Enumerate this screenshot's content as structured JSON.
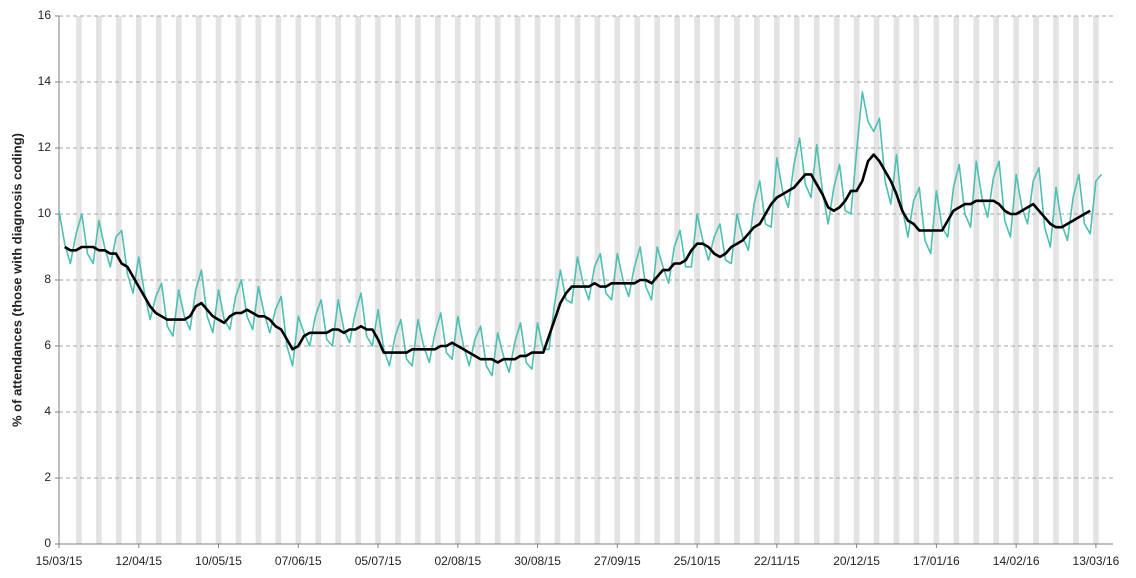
{
  "chart_data": {
    "type": "line",
    "y_label": "% of attendances (those with diagnosis coding)",
    "x": [
      "15/03/15",
      "17/03/15",
      "19/03/15",
      "21/03/15",
      "23/03/15",
      "25/03/15",
      "27/03/15",
      "29/03/15",
      "31/03/15",
      "02/04/15",
      "04/04/15",
      "06/04/15",
      "08/04/15",
      "10/04/15",
      "12/04/15",
      "14/04/15",
      "16/04/15",
      "18/04/15",
      "20/04/15",
      "22/04/15",
      "24/04/15",
      "26/04/15",
      "28/04/15",
      "30/04/15",
      "02/05/15",
      "04/05/15",
      "06/05/15",
      "08/05/15",
      "10/05/15",
      "12/05/15",
      "14/05/15",
      "16/05/15",
      "18/05/15",
      "20/05/15",
      "22/05/15",
      "24/05/15",
      "26/05/15",
      "28/05/15",
      "30/05/15",
      "01/06/15",
      "03/06/15",
      "05/06/15",
      "07/06/15",
      "09/06/15",
      "11/06/15",
      "13/06/15",
      "15/06/15",
      "17/06/15",
      "19/06/15",
      "21/06/15",
      "23/06/15",
      "25/06/15",
      "27/06/15",
      "29/06/15",
      "01/07/15",
      "03/07/15",
      "05/07/15",
      "07/07/15",
      "09/07/15",
      "11/07/15",
      "13/07/15",
      "15/07/15",
      "17/07/15",
      "19/07/15",
      "21/07/15",
      "23/07/15",
      "25/07/15",
      "27/07/15",
      "29/07/15",
      "31/07/15",
      "02/08/15",
      "04/08/15",
      "06/08/15",
      "08/08/15",
      "10/08/15",
      "12/08/15",
      "14/08/15",
      "16/08/15",
      "18/08/15",
      "20/08/15",
      "22/08/15",
      "24/08/15",
      "26/08/15",
      "28/08/15",
      "30/08/15",
      "01/09/15",
      "03/09/15",
      "05/09/15",
      "07/09/15",
      "09/09/15",
      "11/09/15",
      "13/09/15",
      "15/09/15",
      "17/09/15",
      "19/09/15",
      "21/09/15",
      "23/09/15",
      "25/09/15",
      "27/09/15",
      "29/09/15",
      "01/10/15",
      "03/10/15",
      "05/10/15",
      "07/10/15",
      "09/10/15",
      "11/10/15",
      "13/10/15",
      "15/10/15",
      "17/10/15",
      "19/10/15",
      "21/10/15",
      "23/10/15",
      "25/10/15",
      "27/10/15",
      "29/10/15",
      "31/10/15",
      "02/11/15",
      "04/11/15",
      "06/11/15",
      "08/11/15",
      "10/11/15",
      "12/11/15",
      "14/11/15",
      "16/11/15",
      "18/11/15",
      "20/11/15",
      "22/11/15",
      "24/11/15",
      "26/11/15",
      "28/11/15",
      "30/11/15",
      "02/12/15",
      "04/12/15",
      "06/12/15",
      "08/12/15",
      "10/12/15",
      "12/12/15",
      "14/12/15",
      "16/12/15",
      "18/12/15",
      "20/12/15",
      "22/12/15",
      "24/12/15",
      "26/12/15",
      "28/12/15",
      "30/12/15",
      "01/01/16",
      "03/01/16",
      "05/01/16",
      "07/01/16",
      "09/01/16",
      "11/01/16",
      "13/01/16",
      "15/01/16",
      "17/01/16",
      "19/01/16",
      "21/01/16",
      "23/01/16",
      "25/01/16",
      "27/01/16",
      "29/01/16",
      "31/01/16",
      "02/02/16",
      "04/02/16",
      "06/02/16",
      "08/02/16",
      "10/02/16",
      "12/02/16",
      "14/02/16",
      "16/02/16",
      "18/02/16",
      "20/02/16",
      "22/02/16",
      "24/02/16",
      "26/02/16",
      "28/02/16",
      "01/03/16",
      "03/03/16",
      "05/03/16",
      "07/03/16",
      "09/03/16",
      "11/03/16",
      "13/03/16",
      "15/03/16"
    ],
    "series": [
      {
        "color": "#4dbfb3",
        "width": 1.6,
        "values": [
          10.1,
          9.1,
          8.5,
          9.4,
          10.0,
          8.8,
          8.5,
          9.8,
          9.0,
          8.4,
          9.3,
          9.5,
          8.2,
          7.6,
          8.7,
          7.6,
          6.8,
          7.5,
          7.9,
          6.6,
          6.3,
          7.7,
          6.9,
          6.5,
          7.7,
          8.3,
          6.9,
          6.4,
          7.7,
          6.8,
          6.5,
          7.5,
          8.0,
          6.9,
          6.5,
          7.8,
          7.0,
          6.4,
          7.1,
          7.5,
          6.0,
          5.4,
          6.9,
          6.4,
          6.0,
          6.9,
          7.4,
          6.2,
          6.0,
          7.4,
          6.5,
          6.1,
          7.0,
          7.6,
          6.3,
          6.0,
          7.1,
          5.9,
          5.4,
          6.3,
          6.8,
          5.6,
          5.4,
          6.8,
          6.0,
          5.5,
          6.4,
          7.0,
          5.8,
          5.6,
          6.9,
          6.0,
          5.4,
          6.2,
          6.6,
          5.4,
          5.1,
          6.4,
          5.7,
          5.2,
          6.1,
          6.7,
          5.5,
          5.3,
          6.7,
          5.9,
          5.9,
          7.3,
          8.3,
          7.4,
          7.3,
          8.7,
          7.9,
          7.4,
          8.4,
          8.8,
          7.6,
          7.4,
          8.8,
          8.0,
          7.5,
          8.4,
          9.0,
          7.8,
          7.4,
          9.0,
          8.4,
          7.9,
          9.0,
          9.5,
          8.4,
          8.4,
          10.0,
          9.2,
          8.6,
          9.3,
          9.7,
          8.6,
          8.5,
          10.0,
          9.3,
          8.9,
          10.3,
          11.0,
          9.7,
          9.6,
          11.7,
          10.7,
          10.2,
          11.5,
          12.3,
          10.9,
          10.5,
          12.1,
          10.7,
          9.7,
          10.8,
          11.5,
          10.1,
          10.0,
          11.9,
          13.7,
          12.8,
          12.5,
          12.9,
          11.0,
          10.3,
          11.8,
          10.2,
          9.3,
          10.4,
          10.8,
          9.2,
          8.8,
          10.7,
          9.6,
          9.3,
          10.8,
          11.5,
          10.0,
          9.6,
          11.6,
          10.5,
          9.9,
          11.1,
          11.6,
          9.8,
          9.3,
          11.2,
          10.2,
          9.7,
          11.0,
          11.4,
          9.6,
          9.0,
          10.8,
          9.7,
          9.2,
          10.5,
          11.2,
          9.7,
          9.4,
          11.0,
          11.2
        ]
      },
      {
        "color": "#000000",
        "width": 2.6,
        "values": [
          null,
          9.0,
          8.9,
          8.9,
          9.0,
          9.0,
          9.0,
          8.9,
          8.9,
          8.8,
          8.8,
          8.5,
          8.4,
          8.1,
          7.8,
          7.5,
          7.2,
          7.0,
          6.9,
          6.8,
          6.8,
          6.8,
          6.8,
          6.9,
          7.2,
          7.3,
          7.1,
          6.9,
          6.8,
          6.7,
          6.9,
          7.0,
          7.0,
          7.1,
          7.0,
          6.9,
          6.9,
          6.8,
          6.6,
          6.5,
          6.2,
          5.9,
          6.0,
          6.3,
          6.4,
          6.4,
          6.4,
          6.4,
          6.5,
          6.5,
          6.4,
          6.5,
          6.5,
          6.6,
          6.5,
          6.5,
          6.2,
          5.8,
          5.8,
          5.8,
          5.8,
          5.8,
          5.9,
          5.9,
          5.9,
          5.9,
          5.9,
          6.0,
          6.0,
          6.1,
          6.0,
          5.9,
          5.8,
          5.7,
          5.6,
          5.6,
          5.6,
          5.5,
          5.6,
          5.6,
          5.6,
          5.7,
          5.7,
          5.8,
          5.8,
          5.8,
          6.3,
          6.8,
          7.3,
          7.6,
          7.8,
          7.8,
          7.8,
          7.8,
          7.9,
          7.8,
          7.8,
          7.9,
          7.9,
          7.9,
          7.9,
          7.9,
          8.0,
          8.0,
          7.9,
          8.1,
          8.3,
          8.3,
          8.5,
          8.5,
          8.6,
          8.9,
          9.1,
          9.1,
          9.0,
          8.8,
          8.7,
          8.8,
          9.0,
          9.1,
          9.2,
          9.4,
          9.6,
          9.7,
          10.0,
          10.3,
          10.5,
          10.6,
          10.7,
          10.8,
          11.0,
          11.2,
          11.2,
          10.9,
          10.6,
          10.2,
          10.1,
          10.2,
          10.4,
          10.7,
          10.7,
          11.0,
          11.6,
          11.8,
          11.6,
          11.3,
          11.0,
          10.6,
          10.1,
          9.8,
          9.7,
          9.5,
          9.5,
          9.5,
          9.5,
          9.5,
          9.8,
          10.1,
          10.2,
          10.3,
          10.3,
          10.4,
          10.4,
          10.4,
          10.4,
          10.3,
          10.1,
          10.0,
          10.0,
          10.1,
          10.2,
          10.3,
          10.1,
          9.9,
          9.7,
          9.6,
          9.6,
          9.7,
          9.8,
          9.9,
          10.0,
          10.1,
          null,
          null
        ]
      }
    ],
    "xlim": [
      "15/03/15",
      "19/03/16"
    ],
    "xticks": [
      "15/03/15",
      "12/04/15",
      "10/05/15",
      "07/06/15",
      "05/07/15",
      "02/08/15",
      "30/08/15",
      "27/09/15",
      "25/10/15",
      "22/11/15",
      "20/12/15",
      "17/01/16",
      "14/02/16",
      "13/03/16"
    ],
    "ylim": [
      0,
      16
    ],
    "yticks": [
      0,
      2,
      4,
      6,
      8,
      10,
      12,
      14,
      16
    ],
    "grid": true,
    "weekend_shading": true
  }
}
